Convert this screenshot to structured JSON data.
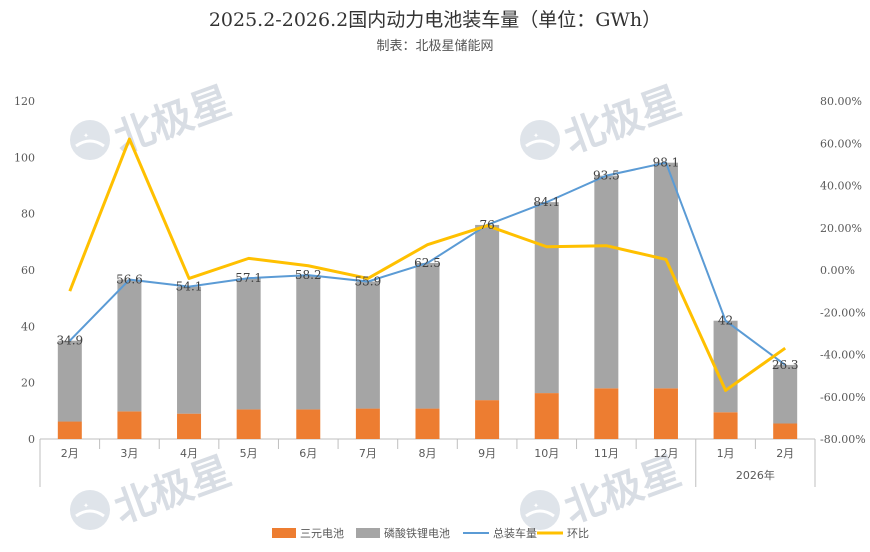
{
  "chart_data": {
    "type": "bar",
    "title": "2025.2-2026.2国内动力电池装车量（单位：GWh）",
    "subtitle": "制表：北极星储能网",
    "watermark": "北极星",
    "categories": [
      "2月",
      "3月",
      "4月",
      "5月",
      "6月",
      "7月",
      "8月",
      "9月",
      "10月",
      "11月",
      "12月",
      "1月",
      "2月"
    ],
    "group_label": "2026年",
    "series": [
      {
        "name": "三元电池",
        "kind": "bar",
        "axis": "left",
        "color": "#ed7d31",
        "values": [
          6.2,
          9.8,
          9.0,
          10.5,
          10.5,
          10.8,
          10.8,
          13.8,
          16.3,
          18.0,
          18.0,
          9.5,
          5.5
        ]
      },
      {
        "name": "磷酸铁锂电池",
        "kind": "bar",
        "axis": "left",
        "color": "#a5a5a5",
        "values": [
          28.7,
          46.8,
          45.1,
          46.6,
          47.7,
          45.1,
          51.7,
          62.2,
          67.8,
          75.5,
          80.1,
          32.5,
          20.8
        ]
      },
      {
        "name": "总装车量",
        "kind": "line",
        "axis": "left",
        "color": "#5b9bd5",
        "values": [
          34.9,
          56.6,
          54.1,
          57.1,
          58.2,
          55.9,
          62.5,
          76,
          84.1,
          93.5,
          98.1,
          42,
          26.3
        ],
        "labels": [
          "34.9",
          "56.6",
          "54.1",
          "57.1",
          "58.2",
          "55.9",
          "62.5",
          "76",
          "84.1",
          "93.5",
          "98.1",
          "42",
          "26.3"
        ]
      },
      {
        "name": "环比",
        "kind": "line",
        "axis": "right",
        "color": "#ffc000",
        "values": [
          -10,
          62,
          -4,
          5.5,
          2,
          -4,
          12,
          21,
          11,
          11.5,
          5,
          -57,
          -37
        ]
      }
    ],
    "y_left": {
      "min": 0,
      "max": 120,
      "ticks": [
        "0",
        "20",
        "40",
        "60",
        "80",
        "100",
        "120"
      ]
    },
    "y_right": {
      "min": -80,
      "max": 80,
      "ticks": [
        "-80.00%",
        "-60.00%",
        "-40.00%",
        "-20.00%",
        "0.00%",
        "20.00%",
        "40.00%",
        "60.00%",
        "80.00%"
      ]
    },
    "legend_position": "bottom",
    "grid": false
  }
}
